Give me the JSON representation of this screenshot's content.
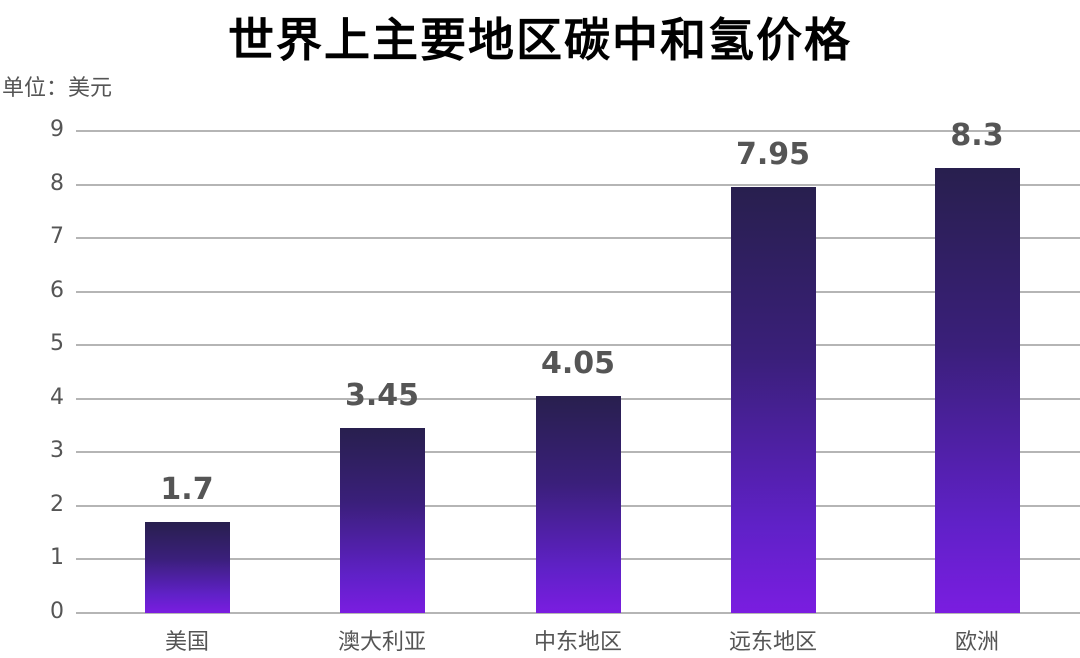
{
  "chart_data": {
    "type": "bar",
    "title": "世界上主要地区碳中和氢价格",
    "unit_label": "单位：美元",
    "xlabel": "",
    "ylabel": "单位：美元",
    "categories": [
      "美国",
      "澳大利亚",
      "中东地区",
      "远东地区",
      "欧洲"
    ],
    "values": [
      1.7,
      3.45,
      4.05,
      7.95,
      8.3
    ],
    "value_labels": [
      "1.7",
      "3.45",
      "4.05",
      "7.95",
      "8.3"
    ],
    "yticks": [
      "0",
      "1",
      "2",
      "3",
      "4",
      "5",
      "6",
      "7",
      "8",
      "9"
    ],
    "ylim": [
      0,
      9
    ],
    "grid": true,
    "legend": null,
    "bar_gradient": [
      "#281f4e",
      "#7a1de0"
    ]
  }
}
